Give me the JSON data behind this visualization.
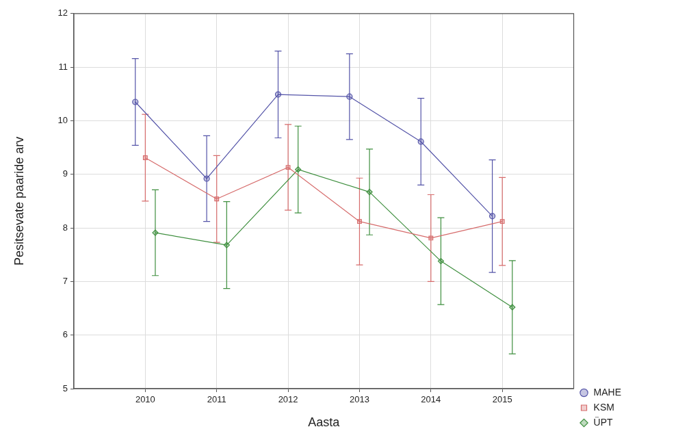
{
  "chart_data": {
    "type": "line",
    "xlabel": "Aasta",
    "ylabel": "Pesitsevate paaride arv",
    "xlim": [
      2009,
      2016
    ],
    "xticks": [
      2010,
      2011,
      2012,
      2013,
      2014,
      2015
    ],
    "ylim": [
      5,
      12
    ],
    "yticks": [
      5,
      6,
      7,
      8,
      9,
      10,
      11,
      12
    ],
    "grid": true,
    "legend": "bottom right",
    "series": [
      {
        "name": "MAHE",
        "color": "#5454a8",
        "marker": "circle",
        "x": [
          2009.86,
          2010.86,
          2011.86,
          2012.86,
          2013.86,
          2014.86
        ],
        "values": [
          10.35,
          8.92,
          10.49,
          10.45,
          9.61,
          8.22
        ],
        "errors": [
          0.81,
          0.8,
          0.81,
          0.8,
          0.81,
          1.05
        ]
      },
      {
        "name": "KSM",
        "color": "#d66b6b",
        "marker": "square",
        "x": [
          2010,
          2011,
          2012,
          2013,
          2014,
          2015
        ],
        "values": [
          9.31,
          8.54,
          9.13,
          8.12,
          7.81,
          8.12
        ],
        "errors": [
          0.81,
          0.81,
          0.8,
          0.81,
          0.81,
          0.82
        ]
      },
      {
        "name": "ÜPT",
        "color": "#3f8f3f",
        "marker": "diamond",
        "x": [
          2010.14,
          2011.14,
          2012.14,
          2013.14,
          2014.14,
          2015.14
        ],
        "values": [
          7.91,
          7.68,
          9.09,
          8.67,
          7.38,
          6.52
        ],
        "errors": [
          0.8,
          0.81,
          0.81,
          0.8,
          0.81,
          0.87
        ]
      }
    ]
  }
}
